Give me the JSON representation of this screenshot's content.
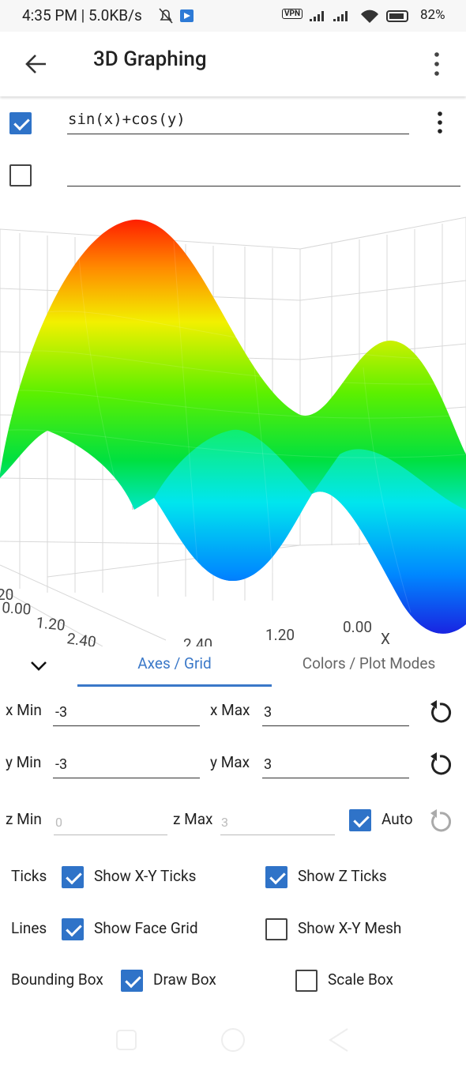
{
  "status_bar": {
    "time": "4:35 PM | 5.0KB/s",
    "vpn": "VPN",
    "battery": "82%"
  },
  "app_bar": {
    "title": "3D Graphing"
  },
  "functions": [
    {
      "checked": true,
      "expression": "sin(x)+cos(y)"
    },
    {
      "checked": false
    }
  ],
  "plot": {
    "left_labels": [
      "20",
      "0.00",
      "1.20",
      "2.40"
    ],
    "bottom_labels": [
      "2.40",
      "1.20",
      "0.00"
    ],
    "x_axis_name": "X"
  },
  "tabs": {
    "items": [
      "Axes / Grid",
      "Colors / Plot Modes"
    ],
    "active": 0
  },
  "axes": {
    "x": {
      "min_label": "x Min",
      "min": "-3",
      "max_label": "x Max",
      "max": "3"
    },
    "y": {
      "min_label": "y Min",
      "min": "-3",
      "max_label": "y Max",
      "max": "3"
    },
    "z": {
      "min_label": "z Min",
      "min_placeholder": "0",
      "max_label": "z Max",
      "max_placeholder": "3",
      "auto_label": "Auto",
      "auto": true
    }
  },
  "options": [
    {
      "label": "Ticks",
      "items": [
        {
          "text": "Show X-Y Ticks",
          "checked": true
        },
        {
          "text": "Show Z Ticks",
          "checked": true
        }
      ]
    },
    {
      "label": "Lines",
      "items": [
        {
          "text": "Show Face Grid",
          "checked": true
        },
        {
          "text": "Show X-Y Mesh",
          "checked": false
        }
      ]
    },
    {
      "label": "Bounding Box",
      "items": [
        {
          "text": "Draw Box",
          "checked": true
        },
        {
          "text": "Scale Box",
          "checked": false
        }
      ]
    }
  ]
}
